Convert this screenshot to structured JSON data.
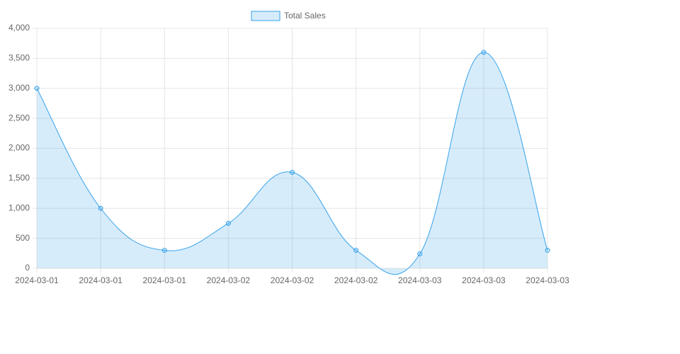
{
  "chart_data": {
    "type": "line",
    "categories": [
      "2024-03-01",
      "2024-03-01",
      "2024-03-01",
      "2024-03-02",
      "2024-03-02",
      "2024-03-02",
      "2024-03-03",
      "2024-03-03",
      "2024-03-03"
    ],
    "series": [
      {
        "name": "Total Sales",
        "color": "#36a2eb",
        "fill": "rgba(54,162,235,0.2)",
        "values": [
          3000,
          1000,
          300,
          750,
          1600,
          300,
          240,
          3600,
          300
        ]
      }
    ],
    "ylim": [
      0,
      4000
    ],
    "yticks": [
      0,
      500,
      {
        "value": 1000,
        "label": "1,000"
      },
      {
        "value": 1500,
        "label": "1,500"
      },
      {
        "value": 2000,
        "label": "2,000"
      },
      {
        "value": 2500,
        "label": "2,500"
      },
      {
        "value": 3000,
        "label": "3,000"
      },
      {
        "value": 3500,
        "label": "3,500"
      },
      {
        "value": 4000,
        "label": "4,000"
      }
    ],
    "grid": true,
    "legend": "top"
  }
}
